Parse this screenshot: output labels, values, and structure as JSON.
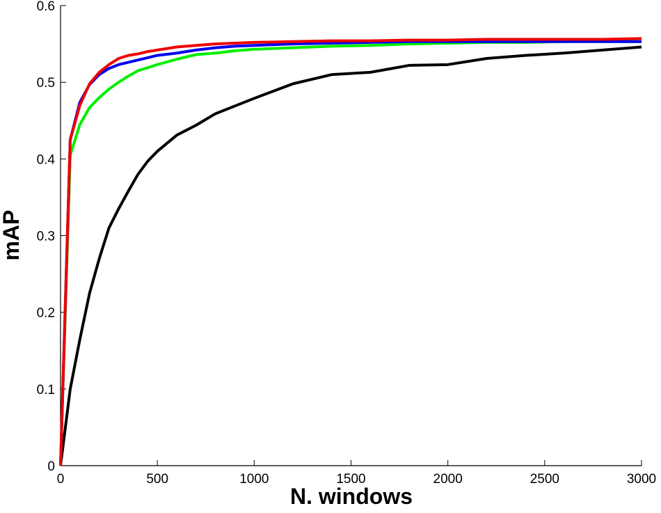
{
  "chart_data": {
    "type": "line",
    "x_label": "N. windows",
    "y_label": "mAP",
    "x": [
      0,
      50,
      100,
      150,
      200,
      250,
      300,
      350,
      400,
      450,
      500,
      600,
      700,
      800,
      900,
      1000,
      1200,
      1400,
      1600,
      1800,
      2000,
      2200,
      2400,
      2600,
      2800,
      3000
    ],
    "series": [
      {
        "color": "#000000",
        "values": [
          0,
          0.1,
          0.165,
          0.225,
          0.27,
          0.31,
          0.335,
          0.358,
          0.38,
          0.397,
          0.41,
          0.431,
          0.444,
          0.459,
          0.469,
          0.479,
          0.498,
          0.51,
          0.513,
          0.522,
          0.523,
          0.531,
          0.535,
          0.538,
          0.542,
          0.546
        ]
      },
      {
        "color": "#00ee00",
        "values": [
          0,
          0.405,
          0.445,
          0.467,
          0.48,
          0.491,
          0.5,
          0.508,
          0.515,
          0.519,
          0.523,
          0.53,
          0.536,
          0.538,
          0.541,
          0.543,
          0.545,
          0.547,
          0.548,
          0.55,
          0.551,
          0.552,
          0.552,
          0.553,
          0.553,
          0.553
        ]
      },
      {
        "color": "#0000ee",
        "values": [
          0,
          0.425,
          0.474,
          0.497,
          0.51,
          0.518,
          0.523,
          0.526,
          0.529,
          0.532,
          0.535,
          0.538,
          0.542,
          0.545,
          0.547,
          0.548,
          0.55,
          0.551,
          0.552,
          0.553,
          0.553,
          0.553,
          0.553,
          0.553,
          0.553,
          0.553
        ]
      },
      {
        "color": "#ee0000",
        "values": [
          0,
          0.425,
          0.47,
          0.498,
          0.513,
          0.523,
          0.531,
          0.535,
          0.537,
          0.54,
          0.542,
          0.546,
          0.548,
          0.55,
          0.551,
          0.552,
          0.553,
          0.554,
          0.554,
          0.555,
          0.555,
          0.556,
          0.556,
          0.556,
          0.556,
          0.557
        ]
      }
    ],
    "xlim": [
      0,
      3000
    ],
    "xticks": [
      0,
      500,
      1000,
      1500,
      2000,
      2500,
      3000
    ],
    "ylim": [
      0,
      0.6
    ],
    "yticks": [
      0,
      0.1,
      0.2,
      0.3,
      0.4,
      0.5,
      0.6
    ]
  }
}
